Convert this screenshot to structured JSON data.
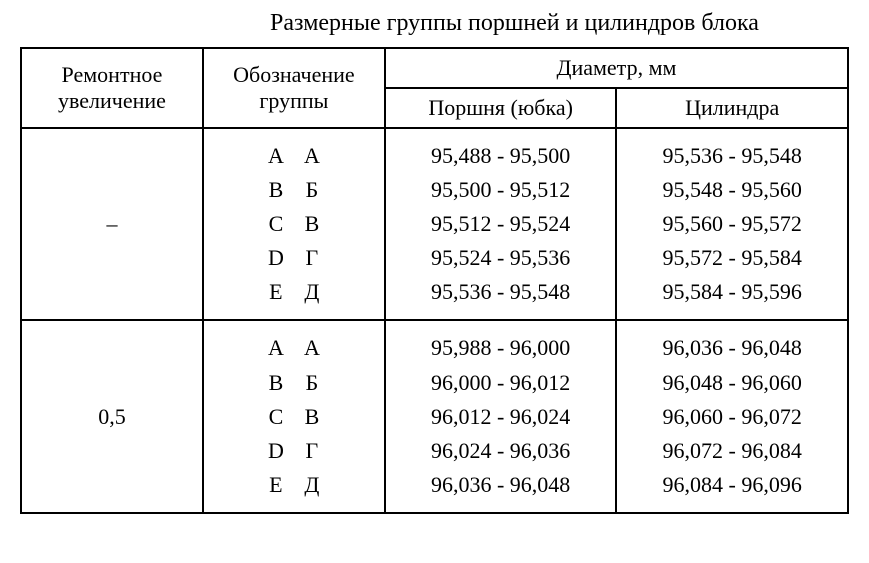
{
  "title": "Размерные группы поршней и цилиндров блока",
  "headers": {
    "repair": "Ремонтное увеличение",
    "group": "Обозначение группы",
    "diameter": "Диаметр, мм",
    "piston": "Поршня (юбка)",
    "cylinder": "Цилиндра"
  },
  "sections": [
    {
      "repair": "–",
      "rows": [
        {
          "lat": "A",
          "cyr": "А",
          "piston": "95,488 - 95,500",
          "cylinder": "95,536 - 95,548"
        },
        {
          "lat": "B",
          "cyr": "Б",
          "piston": "95,500 - 95,512",
          "cylinder": "95,548 - 95,560"
        },
        {
          "lat": "C",
          "cyr": "В",
          "piston": "95,512 - 95,524",
          "cylinder": "95,560 - 95,572"
        },
        {
          "lat": "D",
          "cyr": "Г",
          "piston": "95,524 - 95,536",
          "cylinder": "95,572 - 95,584"
        },
        {
          "lat": "E",
          "cyr": "Д",
          "piston": "95,536 - 95,548",
          "cylinder": "95,584 - 95,596"
        }
      ]
    },
    {
      "repair": "0,5",
      "rows": [
        {
          "lat": "A",
          "cyr": "А",
          "piston": "95,988 - 96,000",
          "cylinder": "96,036 - 96,048"
        },
        {
          "lat": "B",
          "cyr": "Б",
          "piston": "96,000 - 96,012",
          "cylinder": "96,048 - 96,060"
        },
        {
          "lat": "C",
          "cyr": "В",
          "piston": "96,012 - 96,024",
          "cylinder": "96,060 - 96,072"
        },
        {
          "lat": "D",
          "cyr": "Г",
          "piston": "96,024 - 96,036",
          "cylinder": "96,072 - 96,084"
        },
        {
          "lat": "E",
          "cyr": "Д",
          "piston": "96,036 - 96,048",
          "cylinder": "96,084 - 96,096"
        }
      ]
    }
  ],
  "colors": {
    "background": "#ffffff",
    "text": "#000000",
    "border": "#000000"
  },
  "column_widths_percent": [
    22,
    22,
    28,
    28
  ]
}
